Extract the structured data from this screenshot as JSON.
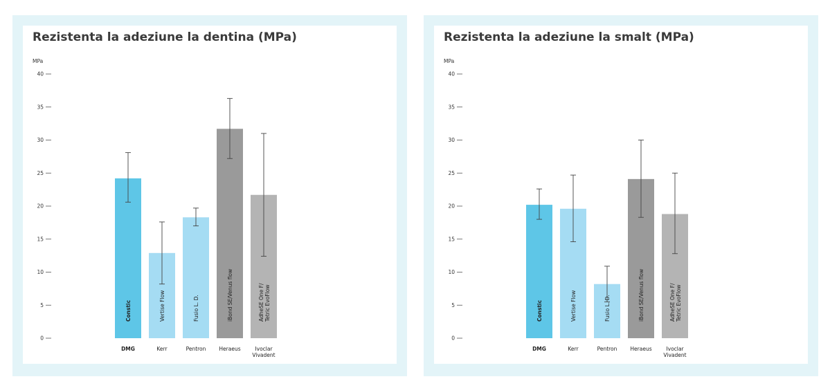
{
  "chart_data": [
    {
      "type": "bar",
      "title": "Rezistenta la adeziune la dentina (MPa)",
      "ylabel": "MPa",
      "ylim": [
        0,
        40
      ],
      "yticks": [
        "0",
        "5",
        "10",
        "15",
        "20",
        "25",
        "30",
        "35",
        "40"
      ],
      "categories": [
        "DMG",
        "Kerr",
        "Pentron",
        "Heraeus",
        "Ivoclar Vivadent"
      ],
      "bar_labels": [
        "Constic",
        "Vertise Flow",
        "Fusio L. D.",
        "iBond SE/Venus flow",
        "AdheSE One F/ Tetric EvoFlow"
      ],
      "values": [
        24.2,
        12.9,
        18.3,
        31.7,
        21.7
      ],
      "error_low": [
        20.6,
        8.2,
        17.0,
        27.2,
        12.4
      ],
      "error_high": [
        28.1,
        17.6,
        19.7,
        36.3,
        31.0
      ],
      "colors": [
        "#5ec6e7",
        "#a5dcf3",
        "#a5dcf3",
        "#9a9a9a",
        "#b4b4b4"
      ],
      "grid": false,
      "legend": "none"
    },
    {
      "type": "bar",
      "title": "Rezistenta la adeziune la smalt (MPa)",
      "ylabel": "MPa",
      "ylim": [
        0,
        40
      ],
      "yticks": [
        "0",
        "5",
        "10",
        "15",
        "20",
        "25",
        "30",
        "35",
        "40"
      ],
      "categories": [
        "DMG",
        "Kerr",
        "Pentron",
        "Heraeus",
        "Ivoclar Vivadent"
      ],
      "bar_labels": [
        "Constic",
        "Vertise Flow",
        "Fusio L. D.",
        "iBond SE/Venus flow",
        "AdheSE One F/ Tetric EvoFlow"
      ],
      "values": [
        20.2,
        19.6,
        8.2,
        24.1,
        18.8
      ],
      "error_low": [
        18.0,
        14.6,
        5.5,
        18.3,
        12.8
      ],
      "error_high": [
        22.6,
        24.7,
        10.9,
        30.0,
        25.0
      ],
      "colors": [
        "#5ec6e7",
        "#a5dcf3",
        "#a5dcf3",
        "#9a9a9a",
        "#b4b4b4"
      ],
      "grid": false,
      "legend": "none"
    }
  ]
}
